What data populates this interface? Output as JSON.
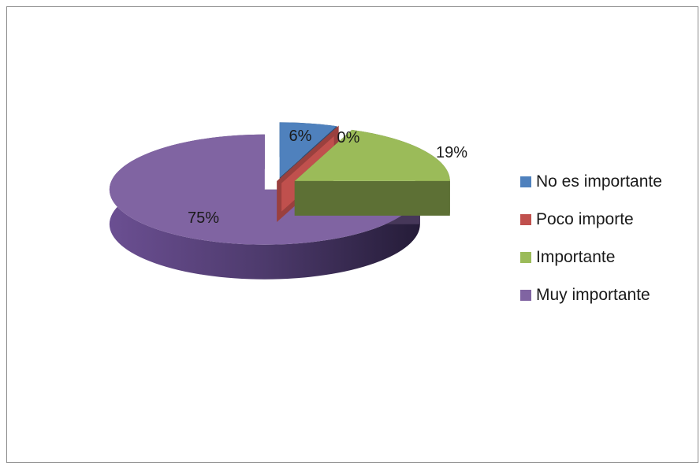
{
  "chart_data": {
    "type": "pie",
    "title": "",
    "three_d": true,
    "exploded": true,
    "legend_position": "right",
    "categories": [
      "No es importante",
      "Poco importe",
      "Importante",
      "Muy importante"
    ],
    "values": [
      6,
      0,
      19,
      75
    ],
    "labels": [
      "6%",
      "0%",
      "19%",
      "75%"
    ],
    "colors": [
      "#4F81BD",
      "#C0504D",
      "#9BBB59",
      "#8064A2"
    ]
  },
  "legend": {
    "items": [
      {
        "label": "No es importante",
        "color": "#4F81BD"
      },
      {
        "label": "Poco importe",
        "color": "#C0504D"
      },
      {
        "label": "Importante",
        "color": "#9BBB59"
      },
      {
        "label": "Muy importante",
        "color": "#8064A2"
      }
    ]
  }
}
